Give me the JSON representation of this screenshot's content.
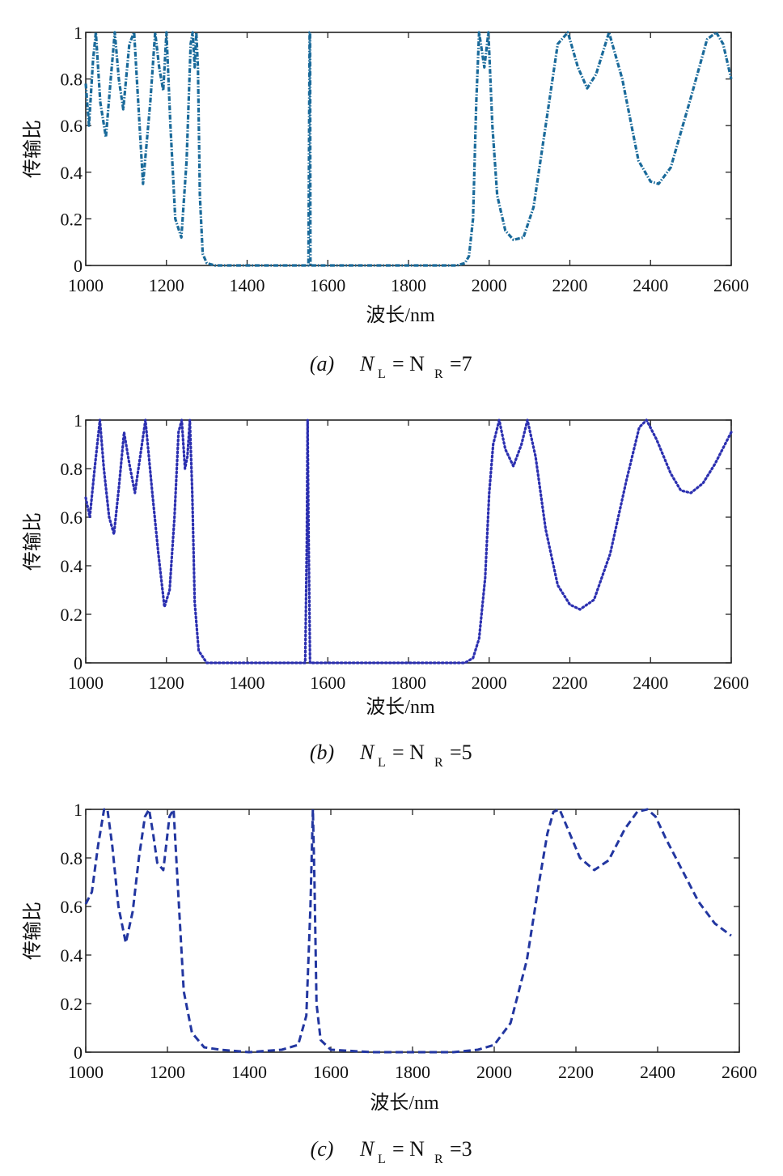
{
  "figure": {
    "captions": [
      {
        "label": "(a)",
        "eq": {
          "lhs": "N",
          "lhs_sub": "L",
          "mid": "= N",
          "mid_sub": "R",
          "rhs": "=7"
        }
      },
      {
        "label": "(b)",
        "eq": {
          "lhs": "N",
          "lhs_sub": "L",
          "mid": "= N",
          "mid_sub": "R",
          "rhs": "=5"
        }
      },
      {
        "label": "(c)",
        "eq": {
          "lhs": "N",
          "lhs_sub": "L",
          "mid": "= N",
          "mid_sub": "R",
          "rhs": "=3"
        }
      }
    ]
  },
  "chart_data": [
    {
      "type": "line",
      "title": "",
      "xlabel": "波长/nm",
      "ylabel": "传输比",
      "xlim": [
        1000,
        2600
      ],
      "ylim": [
        0,
        1
      ],
      "xticks": [
        "1000",
        "1200",
        "1400",
        "1600",
        "1800",
        "2000",
        "2200",
        "2400",
        "2600"
      ],
      "yticks": [
        "0",
        "0.2",
        "0.4",
        "0.6",
        "0.8",
        "1"
      ],
      "grid": false,
      "line_style": "dash-dot",
      "color": "#1a6a9a",
      "series": [
        {
          "x": [
            1000,
            1008,
            1018,
            1025,
            1036,
            1050,
            1062,
            1072,
            1082,
            1093,
            1108,
            1120,
            1142,
            1160,
            1172,
            1182,
            1192,
            1200,
            1210,
            1222,
            1237,
            1250,
            1260,
            1265,
            1270,
            1274,
            1278,
            1283,
            1290,
            1300,
            1320,
            1400,
            1500,
            1552,
            1555,
            1556,
            1557,
            1560,
            1600,
            1800,
            1920,
            1940,
            1950,
            1960,
            1968,
            1975,
            1988,
            1998,
            2008,
            2020,
            2040,
            2060,
            2085,
            2110,
            2140,
            2170,
            2195,
            2220,
            2243,
            2265,
            2297,
            2330,
            2370,
            2400,
            2420,
            2450,
            2500,
            2540,
            2563,
            2580,
            2600
          ],
          "y": [
            0.78,
            0.6,
            0.88,
            1,
            0.7,
            0.55,
            0.8,
            1,
            0.8,
            0.67,
            0.95,
            1,
            0.35,
            0.7,
            1,
            0.85,
            0.75,
            1,
            0.6,
            0.2,
            0.12,
            0.45,
            0.95,
            1,
            0.85,
            1,
            0.85,
            0.3,
            0.05,
            0.01,
            0,
            0,
            0,
            0,
            1,
            1,
            0,
            0,
            0,
            0,
            0,
            0.01,
            0.04,
            0.2,
            0.7,
            1,
            0.85,
            1,
            0.6,
            0.3,
            0.15,
            0.11,
            0.12,
            0.25,
            0.6,
            0.95,
            1,
            0.85,
            0.76,
            0.82,
            1,
            0.8,
            0.45,
            0.36,
            0.35,
            0.42,
            0.72,
            0.97,
            1,
            0.95,
            0.8
          ]
        }
      ]
    },
    {
      "type": "line",
      "title": "",
      "xlabel": "波长/nm",
      "ylabel": "传输比",
      "xlim": [
        1000,
        2600
      ],
      "ylim": [
        0,
        1
      ],
      "xticks": [
        "1000",
        "1200",
        "1400",
        "1600",
        "1800",
        "2000",
        "2200",
        "2400",
        "2600"
      ],
      "yticks": [
        "0",
        "0.2",
        "0.4",
        "0.6",
        "0.8",
        "1"
      ],
      "grid": false,
      "line_style": "dotted",
      "color": "#2b2fb0",
      "series": [
        {
          "x": [
            1000,
            1010,
            1022,
            1035,
            1045,
            1058,
            1070,
            1082,
            1095,
            1108,
            1122,
            1135,
            1148,
            1165,
            1180,
            1195,
            1208,
            1220,
            1230,
            1238,
            1246,
            1252,
            1258,
            1264,
            1270,
            1280,
            1300,
            1400,
            1500,
            1544,
            1548,
            1550,
            1552,
            1556,
            1600,
            1800,
            1940,
            1960,
            1975,
            1990,
            2000,
            2010,
            2025,
            2040,
            2060,
            2080,
            2095,
            2115,
            2140,
            2170,
            2200,
            2225,
            2260,
            2300,
            2340,
            2372,
            2390,
            2415,
            2450,
            2475,
            2500,
            2530,
            2560,
            2600
          ],
          "y": [
            0.68,
            0.6,
            0.8,
            1,
            0.8,
            0.6,
            0.53,
            0.72,
            0.95,
            0.82,
            0.7,
            0.85,
            1,
            0.7,
            0.45,
            0.23,
            0.3,
            0.6,
            0.95,
            1,
            0.8,
            0.85,
            1,
            0.7,
            0.25,
            0.05,
            0,
            0,
            0,
            0,
            0.5,
            1,
            0.6,
            0,
            0,
            0,
            0,
            0.02,
            0.1,
            0.35,
            0.7,
            0.9,
            1,
            0.88,
            0.81,
            0.9,
            1,
            0.85,
            0.55,
            0.32,
            0.24,
            0.22,
            0.26,
            0.45,
            0.75,
            0.97,
            1,
            0.92,
            0.78,
            0.71,
            0.7,
            0.74,
            0.82,
            0.95
          ]
        }
      ]
    },
    {
      "type": "line",
      "title": "",
      "xlabel": "波长/nm",
      "ylabel": "传输比",
      "xlim": [
        1000,
        2600
      ],
      "ylim": [
        0,
        1
      ],
      "xticks": [
        "1000",
        "1200",
        "1400",
        "1600",
        "1800",
        "2000",
        "2200",
        "2400",
        "2600"
      ],
      "yticks": [
        "0",
        "0.2",
        "0.4",
        "0.6",
        "0.8",
        "1"
      ],
      "grid": false,
      "line_style": "dashed",
      "color": "#2236a0",
      "series": [
        {
          "x": [
            1000,
            1015,
            1030,
            1045,
            1053,
            1065,
            1080,
            1098,
            1115,
            1130,
            1145,
            1155,
            1165,
            1175,
            1190,
            1205,
            1215,
            1225,
            1240,
            1260,
            1290,
            1330,
            1400,
            1480,
            1520,
            1540,
            1550,
            1556,
            1560,
            1565,
            1575,
            1600,
            1700,
            1800,
            1900,
            1960,
            2000,
            2040,
            2080,
            2110,
            2130,
            2145,
            2160,
            2180,
            2210,
            2245,
            2280,
            2320,
            2350,
            2375,
            2395,
            2420,
            2460,
            2500,
            2540,
            2580
          ],
          "y": [
            0.61,
            0.66,
            0.85,
            1,
            1,
            0.85,
            0.6,
            0.45,
            0.58,
            0.8,
            0.97,
            1,
            0.9,
            0.78,
            0.75,
            0.97,
            1,
            0.7,
            0.25,
            0.08,
            0.02,
            0.01,
            0,
            0.01,
            0.03,
            0.15,
            0.6,
            1,
            0.7,
            0.2,
            0.05,
            0.01,
            0,
            0,
            0,
            0.01,
            0.03,
            0.12,
            0.38,
            0.7,
            0.9,
            0.99,
            1,
            0.92,
            0.8,
            0.75,
            0.79,
            0.92,
            0.99,
            1,
            0.97,
            0.88,
            0.75,
            0.62,
            0.53,
            0.48
          ]
        }
      ]
    }
  ]
}
